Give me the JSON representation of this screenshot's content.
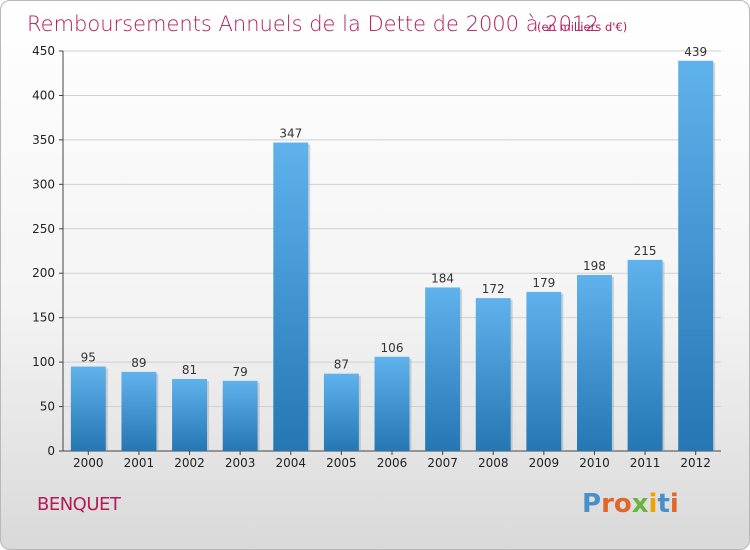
{
  "colors": {
    "title": "#b5195b",
    "bar_light": "#5aace6",
    "bar_dark": "#2378b5",
    "grid": "#d0d0d0",
    "logo": [
      "#4a90c8",
      "#e0672b",
      "#e0672b",
      "#6ab43e",
      "#f0a000",
      "#4a90c8",
      "#e0672b"
    ]
  },
  "logo_text": "Proxiti",
  "commune": "BENQUET",
  "chart_data": {
    "type": "bar",
    "title": "Remboursements Annuels de la Dette de 2000 à 2012",
    "subtitle": "(en milliers d'€)",
    "xlabel": "",
    "ylabel": "",
    "categories": [
      "2000",
      "2001",
      "2002",
      "2003",
      "2004",
      "2005",
      "2006",
      "2007",
      "2008",
      "2009",
      "2010",
      "2011",
      "2012"
    ],
    "values": [
      95,
      89,
      81,
      79,
      347,
      87,
      106,
      184,
      172,
      179,
      198,
      215,
      439
    ],
    "ylim": [
      0,
      450
    ],
    "yticks": [
      0,
      50,
      100,
      150,
      200,
      250,
      300,
      350,
      400,
      450
    ],
    "grid": true,
    "legend": "none"
  }
}
